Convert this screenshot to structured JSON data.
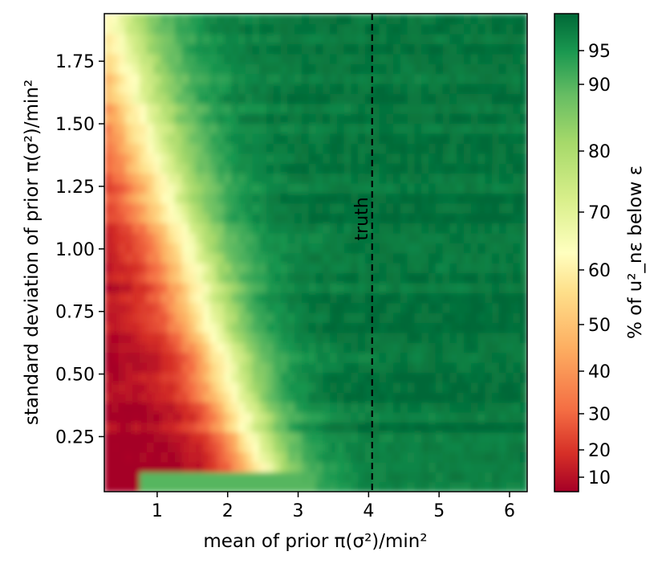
{
  "chart_data": {
    "type": "heatmap",
    "xlabel": "mean of prior π(σ²)/min²",
    "ylabel": "standard deviation of prior π(σ²)/min²",
    "colorbar_label": "% of u²_nε below ε",
    "xlim": [
      0.25,
      6.25
    ],
    "ylim": [
      0.03,
      1.94
    ],
    "x_ticks": [
      {
        "value": 1,
        "label": "1"
      },
      {
        "value": 2,
        "label": "2"
      },
      {
        "value": 3,
        "label": "3"
      },
      {
        "value": 4,
        "label": "4"
      },
      {
        "value": 5,
        "label": "5"
      },
      {
        "value": 6,
        "label": "6"
      }
    ],
    "y_ticks": [
      {
        "value": 0.25,
        "label": "0.25"
      },
      {
        "value": 0.5,
        "label": "0.50"
      },
      {
        "value": 0.75,
        "label": "0.75"
      },
      {
        "value": 1.0,
        "label": "1.00"
      },
      {
        "value": 1.25,
        "label": "1.25"
      },
      {
        "value": 1.5,
        "label": "1.50"
      },
      {
        "value": 1.75,
        "label": "1.75"
      }
    ],
    "colorbar_ticks": [
      {
        "value": 10,
        "label": "10"
      },
      {
        "value": 20,
        "label": "20"
      },
      {
        "value": 30,
        "label": "30"
      },
      {
        "value": 40,
        "label": "40"
      },
      {
        "value": 50,
        "label": "50"
      },
      {
        "value": 60,
        "label": "60"
      },
      {
        "value": 70,
        "label": "70"
      },
      {
        "value": 80,
        "label": "80"
      },
      {
        "value": 90,
        "label": "90"
      },
      {
        "value": 95,
        "label": "95"
      }
    ],
    "colormap": "RdYlGn",
    "vertical_line": {
      "x": 4.05,
      "style": "dashed",
      "label": "truth"
    }
  }
}
